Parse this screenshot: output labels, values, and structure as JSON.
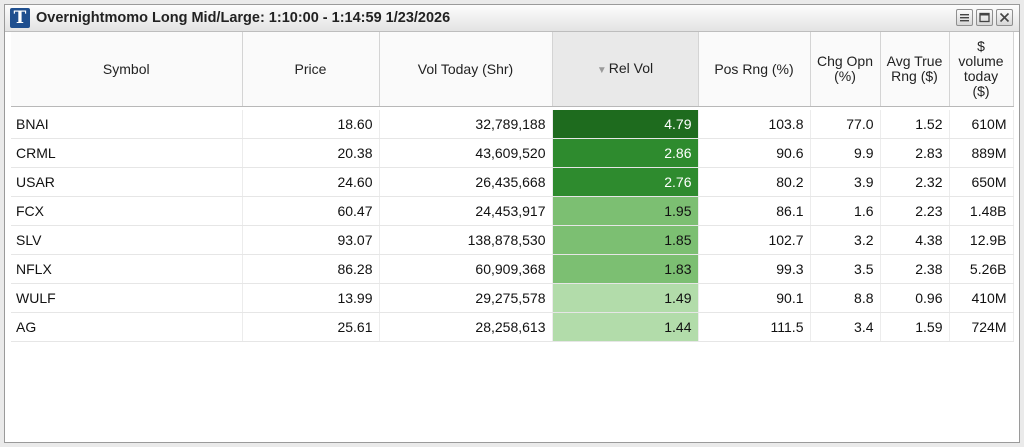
{
  "window": {
    "logo_letter": "T",
    "title": "Overnightmomo Long Mid/Large: 1:10:00 - 1:14:59 1/23/2026"
  },
  "columns": [
    {
      "label": "Symbol"
    },
    {
      "label": "Price"
    },
    {
      "label": "Vol Today (Shr)"
    },
    {
      "label": "Rel Vol",
      "sort": "descending"
    },
    {
      "label": "Pos Rng (%)"
    },
    {
      "label": "Chg Opn (%)"
    },
    {
      "label": "Avg True Rng ($)"
    },
    {
      "label": "$ volume today ($)"
    }
  ],
  "rows": [
    {
      "symbol": "BNAI",
      "price": "18.60",
      "vol_today": "32,789,188",
      "rel_vol": "4.79",
      "pos_rng": "103.8",
      "chg_opn": "77.0",
      "atr": "1.52",
      "dollar_vol": "610M",
      "rel_color": "#1e6b1e"
    },
    {
      "symbol": "CRML",
      "price": "20.38",
      "vol_today": "43,609,520",
      "rel_vol": "2.86",
      "pos_rng": "90.6",
      "chg_opn": "9.9",
      "atr": "2.83",
      "dollar_vol": "889M",
      "rel_color": "#2e8b2e"
    },
    {
      "symbol": "USAR",
      "price": "24.60",
      "vol_today": "26,435,668",
      "rel_vol": "2.76",
      "pos_rng": "80.2",
      "chg_opn": "3.9",
      "atr": "2.32",
      "dollar_vol": "650M",
      "rel_color": "#2e8b2e"
    },
    {
      "symbol": "FCX",
      "price": "60.47",
      "vol_today": "24,453,917",
      "rel_vol": "1.95",
      "pos_rng": "86.1",
      "chg_opn": "1.6",
      "atr": "2.23",
      "dollar_vol": "1.48B",
      "rel_color": "#7cbf72"
    },
    {
      "symbol": "SLV",
      "price": "93.07",
      "vol_today": "138,878,530",
      "rel_vol": "1.85",
      "pos_rng": "102.7",
      "chg_opn": "3.2",
      "atr": "4.38",
      "dollar_vol": "12.9B",
      "rel_color": "#7cbf72"
    },
    {
      "symbol": "NFLX",
      "price": "86.28",
      "vol_today": "60,909,368",
      "rel_vol": "1.83",
      "pos_rng": "99.3",
      "chg_opn": "3.5",
      "atr": "2.38",
      "dollar_vol": "5.26B",
      "rel_color": "#7cbf72"
    },
    {
      "symbol": "WULF",
      "price": "13.99",
      "vol_today": "29,275,578",
      "rel_vol": "1.49",
      "pos_rng": "90.1",
      "chg_opn": "8.8",
      "atr": "0.96",
      "dollar_vol": "410M",
      "rel_color": "#b2dcaa"
    },
    {
      "symbol": "AG",
      "price": "25.61",
      "vol_today": "28,258,613",
      "rel_vol": "1.44",
      "pos_rng": "111.5",
      "chg_opn": "3.4",
      "atr": "1.59",
      "dollar_vol": "724M",
      "rel_color": "#b2dcaa"
    }
  ]
}
